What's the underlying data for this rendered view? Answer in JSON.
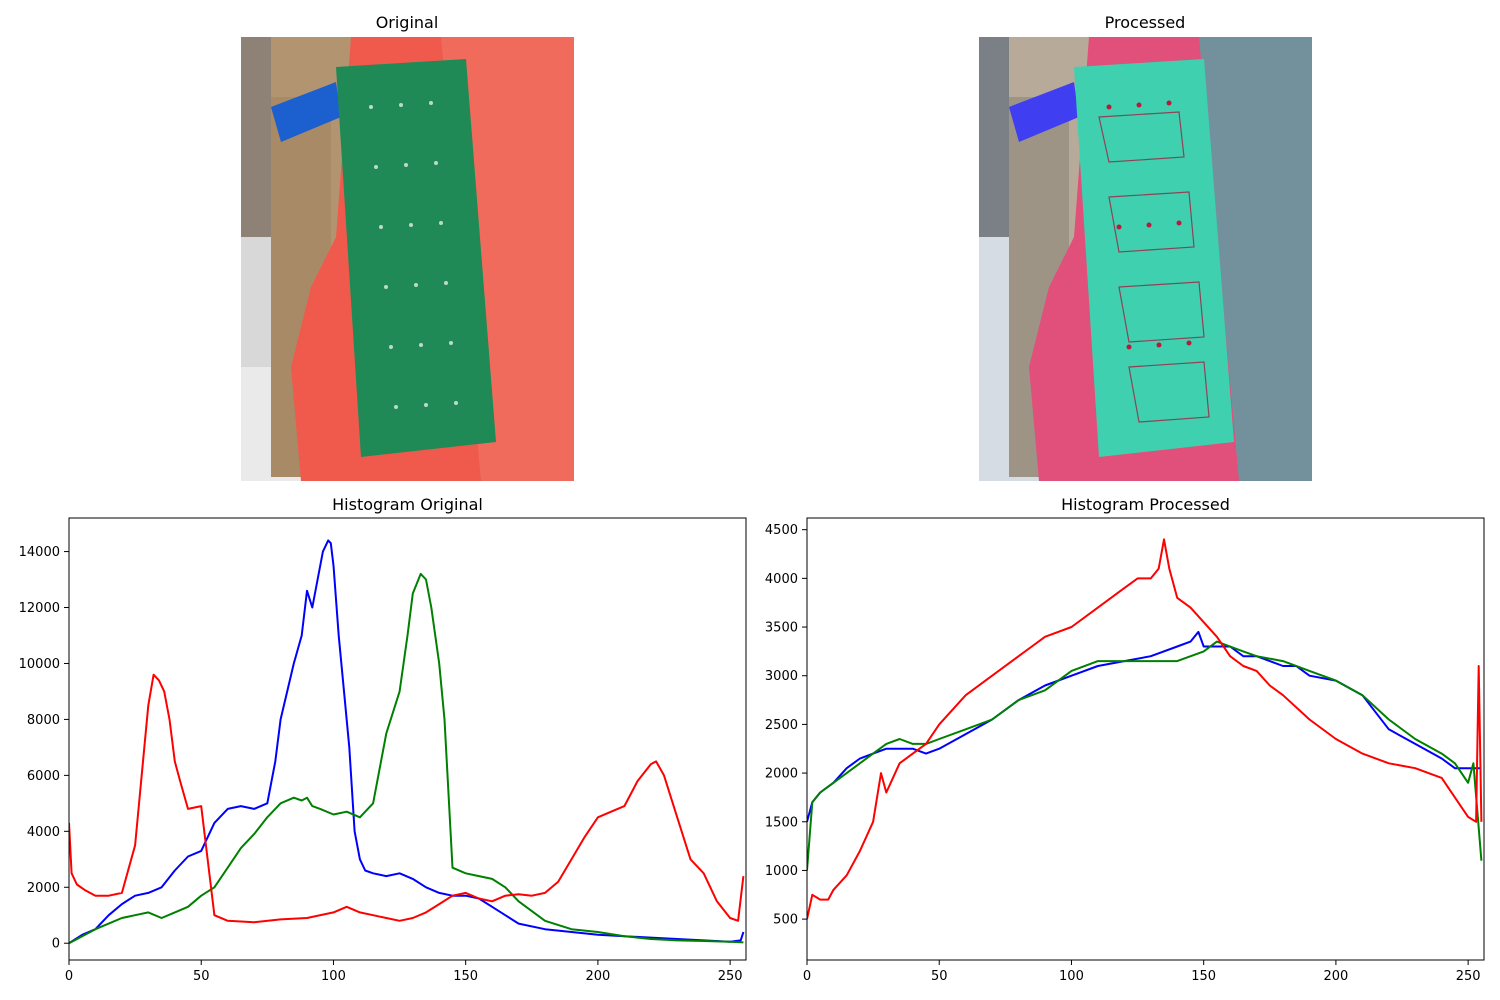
{
  "titles": {
    "original": "Original",
    "processed": "Processed"
  },
  "colors": {
    "red": "#ff0000",
    "green": "#008000",
    "blue": "#0000ff",
    "pcb_green": "#1f8a55",
    "bubble_red": "#ef5a4c",
    "cardboard": "#b39470"
  },
  "chart_data": [
    {
      "type": "line",
      "title": "Histogram Original",
      "xlabel": "",
      "ylabel": "",
      "xlim": [
        0,
        256
      ],
      "ylim": [
        -600,
        15200
      ],
      "xticks": [
        0,
        50,
        100,
        150,
        200,
        250
      ],
      "yticks": [
        0,
        2000,
        4000,
        6000,
        8000,
        10000,
        12000,
        14000
      ],
      "grid": false,
      "series": [
        {
          "color": "#0000ff",
          "x": [
            0,
            5,
            10,
            15,
            20,
            25,
            30,
            35,
            40,
            45,
            50,
            55,
            60,
            65,
            70,
            75,
            78,
            80,
            85,
            88,
            90,
            92,
            94,
            96,
            98,
            99,
            100,
            102,
            104,
            106,
            108,
            110,
            112,
            115,
            120,
            125,
            130,
            135,
            140,
            145,
            150,
            155,
            160,
            165,
            170,
            180,
            190,
            200,
            210,
            220,
            230,
            240,
            250,
            254,
            255
          ],
          "y": [
            0,
            300,
            500,
            1000,
            1400,
            1700,
            1800,
            2000,
            2600,
            3100,
            3300,
            4300,
            4800,
            4900,
            4800,
            5000,
            6500,
            8000,
            10000,
            11000,
            12600,
            12000,
            13000,
            14000,
            14400,
            14300,
            13500,
            11000,
            9000,
            7000,
            4000,
            3000,
            2600,
            2500,
            2400,
            2500,
            2300,
            2000,
            1800,
            1700,
            1700,
            1600,
            1300,
            1000,
            700,
            500,
            400,
            300,
            250,
            200,
            150,
            100,
            50,
            100,
            400
          ]
        },
        {
          "color": "#008000",
          "x": [
            0,
            5,
            10,
            15,
            20,
            25,
            30,
            35,
            40,
            45,
            50,
            55,
            60,
            65,
            70,
            75,
            80,
            85,
            88,
            90,
            92,
            95,
            100,
            105,
            110,
            115,
            120,
            125,
            128,
            130,
            133,
            135,
            137,
            140,
            142,
            145,
            150,
            155,
            160,
            165,
            170,
            180,
            190,
            200,
            210,
            220,
            230,
            240,
            250,
            255
          ],
          "y": [
            0,
            250,
            500,
            700,
            900,
            1000,
            1100,
            900,
            1100,
            1300,
            1700,
            2000,
            2700,
            3400,
            3900,
            4500,
            5000,
            5200,
            5100,
            5200,
            4900,
            4800,
            4600,
            4700,
            4500,
            5000,
            7500,
            9000,
            11000,
            12500,
            13200,
            13000,
            12000,
            10000,
            8000,
            2700,
            2500,
            2400,
            2300,
            2000,
            1500,
            800,
            500,
            400,
            250,
            150,
            100,
            80,
            50,
            30
          ]
        },
        {
          "color": "#ff0000",
          "x": [
            0,
            1,
            3,
            6,
            10,
            15,
            20,
            25,
            28,
            30,
            32,
            34,
            36,
            38,
            40,
            42,
            45,
            50,
            55,
            60,
            70,
            80,
            90,
            100,
            105,
            110,
            115,
            120,
            125,
            130,
            135,
            140,
            145,
            150,
            155,
            160,
            165,
            170,
            175,
            180,
            185,
            190,
            195,
            200,
            205,
            210,
            215,
            220,
            222,
            225,
            230,
            235,
            240,
            245,
            250,
            253,
            255
          ],
          "y": [
            4300,
            2500,
            2100,
            1900,
            1700,
            1700,
            1800,
            3500,
            6500,
            8500,
            9600,
            9400,
            9000,
            8000,
            6500,
            5800,
            4800,
            4900,
            1000,
            800,
            750,
            850,
            900,
            1100,
            1300,
            1100,
            1000,
            900,
            800,
            900,
            1100,
            1400,
            1700,
            1800,
            1600,
            1500,
            1700,
            1750,
            1700,
            1800,
            2200,
            3000,
            3800,
            4500,
            4700,
            4900,
            5800,
            6400,
            6500,
            6000,
            4500,
            3000,
            2500,
            1500,
            900,
            800,
            2400
          ]
        }
      ]
    },
    {
      "type": "line",
      "title": "Histogram Processed",
      "xlabel": "",
      "ylabel": "",
      "xlim": [
        0,
        256
      ],
      "ylim": [
        80,
        4620
      ],
      "xticks": [
        0,
        50,
        100,
        150,
        200,
        250
      ],
      "yticks": [
        500,
        1000,
        1500,
        2000,
        2500,
        3000,
        3500,
        4000,
        4500
      ],
      "grid": false,
      "series": [
        {
          "color": "#0000ff",
          "x": [
            0,
            2,
            5,
            10,
            15,
            20,
            25,
            30,
            35,
            40,
            45,
            50,
            60,
            70,
            80,
            90,
            100,
            110,
            120,
            130,
            140,
            145,
            148,
            150,
            155,
            160,
            165,
            170,
            175,
            180,
            185,
            190,
            200,
            210,
            220,
            230,
            240,
            245,
            250,
            255
          ],
          "y": [
            1500,
            1700,
            1800,
            1900,
            2050,
            2150,
            2200,
            2250,
            2250,
            2250,
            2200,
            2250,
            2400,
            2550,
            2750,
            2900,
            3000,
            3100,
            3150,
            3200,
            3300,
            3350,
            3450,
            3300,
            3300,
            3300,
            3200,
            3200,
            3150,
            3100,
            3100,
            3000,
            2950,
            2800,
            2450,
            2300,
            2150,
            2050,
            2050,
            2050
          ]
        },
        {
          "color": "#008000",
          "x": [
            0,
            2,
            5,
            10,
            15,
            20,
            25,
            30,
            35,
            40,
            45,
            50,
            60,
            70,
            80,
            90,
            100,
            110,
            120,
            130,
            140,
            150,
            155,
            160,
            165,
            170,
            180,
            190,
            200,
            210,
            220,
            230,
            240,
            245,
            250,
            252,
            255
          ],
          "y": [
            1000,
            1700,
            1800,
            1900,
            2000,
            2100,
            2200,
            2300,
            2350,
            2300,
            2300,
            2350,
            2450,
            2550,
            2750,
            2850,
            3050,
            3150,
            3150,
            3150,
            3150,
            3250,
            3350,
            3300,
            3250,
            3200,
            3150,
            3050,
            2950,
            2800,
            2550,
            2350,
            2200,
            2100,
            1900,
            2100,
            1100
          ]
        },
        {
          "color": "#ff0000",
          "x": [
            0,
            2,
            5,
            8,
            10,
            15,
            20,
            25,
            28,
            30,
            35,
            40,
            45,
            50,
            60,
            70,
            80,
            85,
            90,
            100,
            110,
            120,
            125,
            130,
            133,
            135,
            137,
            140,
            145,
            150,
            155,
            160,
            165,
            170,
            175,
            180,
            190,
            200,
            210,
            220,
            230,
            240,
            245,
            250,
            253,
            254,
            255
          ],
          "y": [
            500,
            750,
            700,
            700,
            800,
            950,
            1200,
            1500,
            2000,
            1800,
            2100,
            2200,
            2300,
            2500,
            2800,
            3000,
            3200,
            3300,
            3400,
            3500,
            3700,
            3900,
            4000,
            4000,
            4100,
            4400,
            4100,
            3800,
            3700,
            3550,
            3400,
            3200,
            3100,
            3050,
            2900,
            2800,
            2550,
            2350,
            2200,
            2100,
            2050,
            1950,
            1750,
            1550,
            1500,
            3100,
            1500
          ]
        }
      ]
    }
  ]
}
